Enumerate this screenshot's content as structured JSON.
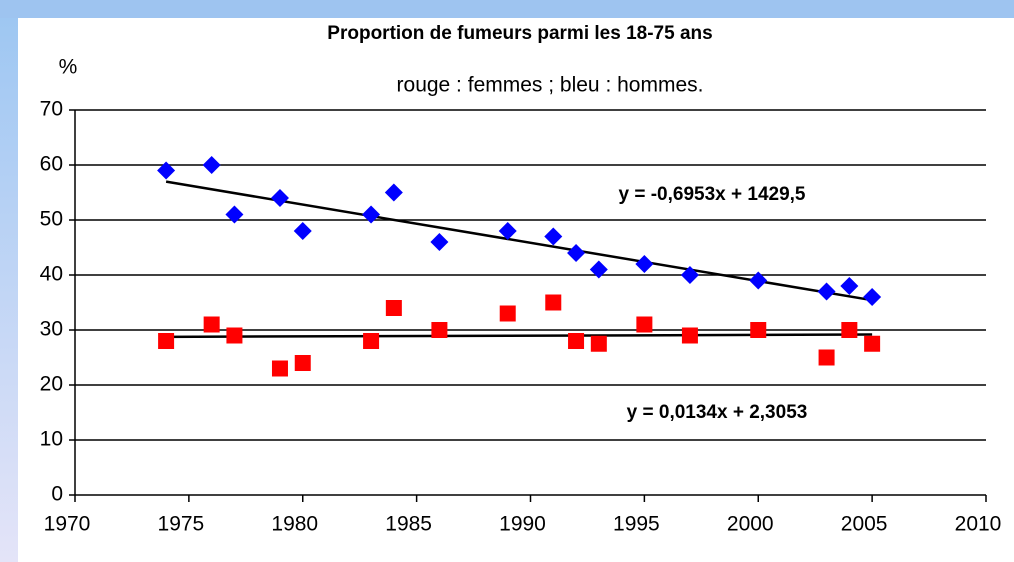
{
  "chart_data": {
    "type": "scatter",
    "title": "Proportion de fumeurs parmi les 18-75 ans",
    "subtitle": "rouge : femmes  ;  bleu : hommes.",
    "y_label": "%",
    "xlim": [
      1970,
      2010
    ],
    "xticks": [
      1970,
      1975,
      1980,
      1985,
      1990,
      1995,
      2000,
      2005,
      2010
    ],
    "ylim": [
      0,
      70
    ],
    "yticks": [
      0,
      10,
      20,
      30,
      40,
      50,
      60,
      70
    ],
    "grid": true,
    "series": [
      {
        "color": "#0000ff",
        "marker": "diamond",
        "x": [
          1974,
          1976,
          1977,
          1979,
          1980,
          1983,
          1984,
          1986,
          1989,
          1991,
          1992,
          1993,
          1995,
          1997,
          2000,
          2003,
          2004,
          2005
        ],
        "values": [
          59,
          60,
          51,
          54,
          48,
          51,
          55,
          46,
          48,
          47,
          44,
          41,
          42,
          40,
          39,
          37,
          38,
          36
        ],
        "trendline": {
          "slope": -0.6953,
          "intercept": 1429.5,
          "label": "y = -0,6953x + 1429,5"
        }
      },
      {
        "color": "#ff0000",
        "marker": "square",
        "x": [
          1974,
          1976,
          1977,
          1979,
          1980,
          1983,
          1984,
          1986,
          1989,
          1991,
          1992,
          1993,
          1995,
          1997,
          2000,
          2003,
          2004,
          2005
        ],
        "values": [
          28,
          31,
          29,
          23,
          24,
          28,
          34,
          30,
          33,
          35,
          28,
          27.5,
          31,
          29,
          30,
          25,
          30,
          27.5
        ],
        "trendline": {
          "slope": 0.0134,
          "intercept": 2.3053,
          "label": "y = 0,0134x + 2,3053"
        }
      }
    ]
  }
}
